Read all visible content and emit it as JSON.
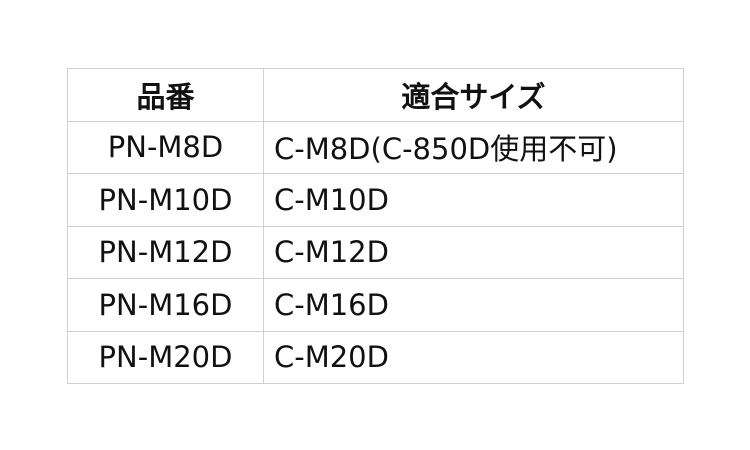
{
  "headers": [
    "品番",
    "適合サイズ"
  ],
  "rows": [
    [
      "PN-M8D",
      "C-M8D(C-850D使用不可)"
    ],
    [
      "PN-M10D",
      "C-M10D"
    ],
    [
      "PN-M12D",
      "C-M12D"
    ],
    [
      "PN-M16D",
      "C-M16D"
    ],
    [
      "PN-M20D",
      "C-M20D"
    ]
  ]
}
